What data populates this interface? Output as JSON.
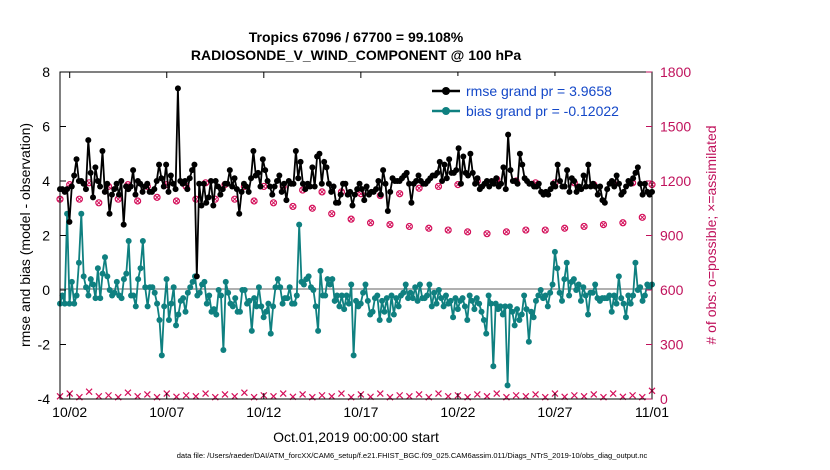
{
  "chart_data": {
    "type": "line",
    "title": "Tropics 67096 / 67700 = 99.108%",
    "subtitle": "RADIOSONDE_V_WIND_COMPONENT @ 100 hPa",
    "xlabel": "Oct.01,2019 00:00:00 start",
    "ylabel_left": "rmse and bias (model - observation)",
    "ylabel_right": "# of obs: o=possible; ×=assimilated",
    "footnote": "data file: /Users/raeder/DAI/ATM_forcXX/CAM6_setup/f.e21.FHIST_BGC.f09_025.CAM6assim.011/Diags_NTrS_2019-10/obs_diag_output.nc",
    "x_tick_labels": [
      "10/02",
      "10/07",
      "10/12",
      "10/17",
      "10/22",
      "10/27",
      "11/01"
    ],
    "x_tick_days": [
      2,
      7,
      12,
      17,
      22,
      27,
      32
    ],
    "xlim_days": [
      1.5,
      32
    ],
    "ylim_left": [
      -4,
      8
    ],
    "y_ticks_left": [
      -4,
      -2,
      0,
      2,
      4,
      6,
      8
    ],
    "ylim_right": [
      0,
      1800
    ],
    "y_ticks_right": [
      0,
      300,
      600,
      900,
      1200,
      1500,
      1800
    ],
    "legend": {
      "position": "top-right",
      "entries": [
        "rmse grand pr = 3.9658",
        "bias grand pr = -0.12022"
      ]
    },
    "colors": {
      "rmse": "#000000",
      "bias": "#0f8080",
      "obs": "#d40f5a",
      "zero_line": "#b0b0b0",
      "right_axis": "#c0125c",
      "legend_text": "#1448c8"
    },
    "series": [
      {
        "name": "rmse",
        "values": [
          3.7,
          3.7,
          3.6,
          3.7,
          2.5,
          3.8,
          4.2,
          4.8,
          4.0,
          4.0,
          3.9,
          3.7,
          5.5,
          4.3,
          3.4,
          4.5,
          4.0,
          3.8,
          5.1,
          3.6,
          3.9,
          2.8,
          3.5,
          3.7,
          3.9,
          3.5,
          4.0,
          2.4,
          3.8,
          3.7,
          3.8,
          4.4,
          3.5,
          4.0,
          3.9,
          3.6,
          3.8,
          3.9,
          3.6,
          3.6,
          3.7,
          4.0,
          4.6,
          4.1,
          3.8,
          4.6,
          3.6,
          4.2,
          3.9,
          3.7,
          7.4,
          4.0,
          3.9,
          4.0,
          3.7,
          4.1,
          4.4,
          4.6,
          0.5,
          3.9,
          3.1,
          3.9,
          3.2,
          3.4,
          4.0,
          3.1,
          4.0,
          3.8,
          3.5,
          3.7,
          3.9,
          3.9,
          4.4,
          3.8,
          4.1,
          3.7,
          2.8,
          3.6,
          3.9,
          3.8,
          3.6,
          4.1,
          5.1,
          4.2,
          4.3,
          3.8,
          4.8,
          4.4,
          4.0,
          3.8,
          3.5,
          3.8,
          4.0,
          4.2,
          3.6,
          3.9,
          3.3,
          4.0,
          3.9,
          3.9,
          5.1,
          4.1,
          4.7,
          3.9,
          3.7,
          3.9,
          3.8,
          4.5,
          3.8,
          4.9,
          5.0,
          3.9,
          4.7,
          4.5,
          3.9,
          3.6,
          3.8,
          3.2,
          3.2,
          3.5,
          3.9,
          3.9,
          3.5,
          3.6,
          3.1,
          3.5,
          3.7,
          3.9,
          3.7,
          3.3,
          3.8,
          3.5,
          3.6,
          3.6,
          3.7,
          4.0,
          3.5,
          4.4,
          3.9,
          2.9,
          3.6,
          4.1,
          4.0,
          4.0,
          4.0,
          4.1,
          4.2,
          4.3,
          3.9,
          3.2,
          3.9,
          4.0,
          4.2,
          4.0,
          3.9,
          3.9,
          4.0,
          4.1,
          4.2,
          4.2,
          4.3,
          4.7,
          4.0,
          4.6,
          4.1,
          4.8,
          4.3,
          4.3,
          4.4,
          5.2,
          3.9,
          4.9,
          4.3,
          4.2,
          5.0,
          4.3,
          3.9,
          4.1,
          3.7,
          3.8,
          3.9,
          4.0,
          3.8,
          4.0,
          3.9,
          4.1,
          3.8,
          3.9,
          4.5,
          3.7,
          5.7,
          4.4,
          4.0,
          4.0,
          3.9,
          5.0,
          4.6,
          4.1,
          4.0,
          3.9,
          3.9,
          3.8,
          3.8,
          3.9,
          3.6,
          3.5,
          3.6,
          3.5,
          3.7,
          3.9,
          3.8,
          4.6,
          4.0,
          3.8,
          3.8,
          4.4,
          3.6,
          4.1,
          4.0,
          3.6,
          3.8,
          3.7,
          4.2,
          3.8,
          4.6,
          3.8,
          3.9,
          3.8,
          3.5,
          3.8,
          3.3,
          3.2,
          3.7,
          3.9,
          4.0,
          3.8,
          4.2,
          3.9,
          3.5,
          3.6,
          3.8,
          4.0,
          3.9,
          4.1,
          4.3,
          4.5,
          3.9,
          3.5,
          3.9,
          3.6,
          3.5,
          3.6
        ]
      },
      {
        "name": "bias",
        "values": [
          -0.5,
          -0.2,
          -0.5,
          2.8,
          -0.5,
          0.3,
          -0.5,
          -0.2,
          1.0,
          2.8,
          0.5,
          0.1,
          -0.2,
          0.4,
          0.2,
          -0.3,
          0.8,
          -0.3,
          0.6,
          1.2,
          0.5,
          0.0,
          -0.2,
          -0.1,
          0.3,
          -0.2,
          -0.3,
          0.4,
          0.6,
          1.8,
          -0.2,
          -0.2,
          -0.6,
          0.4,
          0.8,
          1.8,
          0.1,
          -0.6,
          0.1,
          0.1,
          -0.1,
          -0.5,
          -1.1,
          -2.4,
          -0.6,
          0.4,
          -1.1,
          -0.5,
          0.1,
          -1.3,
          -0.9,
          -0.4,
          -0.3,
          -0.8,
          -0.1,
          0.1,
          0.3,
          0.5,
          -0.2,
          -0.1,
          0.2,
          0.3,
          -0.5,
          -0.2,
          -0.8,
          -0.7,
          -0.9,
          0.0,
          -0.2,
          -2.2,
          0.3,
          -0.1,
          -0.5,
          -0.6,
          -0.3,
          -0.8,
          -0.8,
          0.0,
          0.0,
          -0.5,
          -0.4,
          -1.5,
          -0.3,
          -0.6,
          0.1,
          -0.6,
          -1.0,
          -0.8,
          -0.5,
          -1.6,
          -0.6,
          0.1,
          0.4,
          0.1,
          -0.5,
          -0.3,
          -0.3,
          0.1,
          -0.5,
          -0.5,
          -0.2,
          2.4,
          0.3,
          0.2,
          0.4,
          0.5,
          0.1,
          0.0,
          -0.6,
          -1.5,
          0.7,
          -0.2,
          -0.2,
          0.4,
          0.2,
          0.4,
          -0.4,
          -0.2,
          -0.6,
          -0.2,
          -0.7,
          -0.2,
          -0.5,
          0.2,
          -2.4,
          -0.4,
          -0.6,
          -0.5,
          -0.1,
          0.2,
          -0.4,
          -0.9,
          -0.8,
          -0.3,
          -0.2,
          -1.1,
          -0.4,
          -0.8,
          -0.3,
          -1.1,
          -0.2,
          -0.9,
          -0.3,
          -0.6,
          -0.2,
          -0.1,
          0.2,
          -0.3,
          -0.1,
          -0.3,
          0.1,
          -0.4,
          0.2,
          -0.3,
          -0.3,
          -0.2,
          0.2,
          -0.6,
          -0.1,
          -0.5,
          0.0,
          -0.3,
          -0.6,
          -0.2,
          -0.5,
          -0.4,
          -1.0,
          -0.3,
          -0.7,
          -0.4,
          -0.3,
          -0.6,
          -1.1,
          -0.2,
          -0.4,
          -0.7,
          -0.3,
          -0.5,
          -0.8,
          -1.1,
          -1.6,
          -0.2,
          -0.5,
          -2.8,
          -0.5,
          -0.7,
          -0.6,
          -0.9,
          -0.6,
          -3.5,
          -0.6,
          -0.8,
          -1.3,
          -0.7,
          -1.1,
          -0.9,
          -0.2,
          -0.7,
          -1.9,
          -0.8,
          -1.0,
          -0.4,
          -0.2,
          0.0,
          -0.3,
          -0.2,
          -0.6,
          -0.1,
          0.2,
          1.4,
          0.8,
          -0.1,
          -0.4,
          0.4,
          1.0,
          -0.2,
          0.3,
          0.4,
          0.0,
          0.2,
          -0.4,
          0.1,
          -0.2,
          -0.9,
          -0.1,
          -0.1,
          0.2,
          -0.3,
          -0.4,
          -0.3,
          -0.3,
          -0.3,
          -0.2,
          -0.8,
          -0.2,
          -0.5,
          0.5,
          -0.3,
          -0.5,
          -1.0,
          -0.2,
          -0.5,
          -0.2,
          1.0,
          0.0,
          0.1,
          -0.4,
          -0.2,
          0.2,
          0.1,
          0.2
        ]
      },
      {
        "name": "obs_possible",
        "days": [
          1.5,
          2.0,
          2.5,
          3.0,
          3.5,
          4.0,
          4.5,
          5.0,
          5.5,
          6.0,
          6.5,
          7.0,
          7.5,
          8.0,
          8.5,
          9.0,
          9.5,
          10.0,
          10.5,
          11.0,
          11.5,
          12.0,
          12.5,
          13.0,
          13.5,
          14.0,
          14.5,
          15.0,
          15.5,
          16.0,
          16.5,
          17.0,
          17.5,
          18.0,
          18.5,
          19.0,
          19.5,
          20.0,
          20.5,
          21.0,
          21.5,
          22.0,
          22.5,
          23.0,
          23.5,
          24.0,
          24.5,
          25.0,
          25.5,
          26.0,
          26.5,
          27.0,
          27.5,
          28.0,
          28.5,
          29.0,
          29.5,
          30.0,
          30.5,
          31.0,
          31.5,
          32.0
        ],
        "values": [
          1100,
          1180,
          1100,
          1190,
          1080,
          1170,
          1100,
          1180,
          1090,
          1170,
          1110,
          1180,
          1090,
          1170,
          1100,
          1190,
          1100,
          1180,
          1100,
          1170,
          1090,
          1170,
          1080,
          1170,
          1060,
          1150,
          1050,
          1140,
          1020,
          1140,
          990,
          1130,
          970,
          1120,
          960,
          1130,
          950,
          1160,
          940,
          1170,
          930,
          1180,
          920,
          1200,
          910,
          1210,
          920,
          1200,
          930,
          1190,
          930,
          1190,
          940,
          1190,
          950,
          1180,
          960,
          1190,
          970,
          1190,
          1000,
          1180
        ]
      },
      {
        "name": "obs_assimilated",
        "days": [
          1.5,
          2.0,
          2.5,
          3.0,
          3.5,
          4.0,
          4.5,
          5.0,
          5.5,
          6.0,
          6.5,
          7.0,
          7.5,
          8.0,
          8.5,
          9.0,
          9.5,
          10.0,
          10.5,
          11.0,
          11.5,
          12.0,
          12.5,
          13.0,
          13.5,
          14.0,
          14.5,
          15.0,
          15.5,
          16.0,
          16.5,
          17.0,
          17.5,
          18.0,
          18.5,
          19.0,
          19.5,
          20.0,
          20.5,
          21.0,
          21.5,
          22.0,
          22.5,
          23.0,
          23.5,
          24.0,
          24.5,
          25.0,
          25.5,
          26.0,
          26.5,
          27.0,
          27.5,
          28.0,
          28.5,
          29.0,
          29.5,
          30.0,
          30.5,
          31.0,
          31.5,
          32.0
        ],
        "values": [
          15,
          30,
          10,
          40,
          15,
          20,
          10,
          35,
          15,
          25,
          10,
          30,
          12,
          20,
          15,
          30,
          10,
          25,
          15,
          35,
          10,
          20,
          15,
          30,
          12,
          25,
          10,
          20,
          15,
          30,
          10,
          25,
          12,
          30,
          10,
          20,
          15,
          25,
          10,
          30,
          15,
          20,
          10,
          25,
          15,
          30,
          10,
          20,
          15,
          25,
          10,
          30,
          12,
          20,
          15,
          25,
          10,
          30,
          12,
          20,
          10,
          45
        ]
      }
    ]
  }
}
